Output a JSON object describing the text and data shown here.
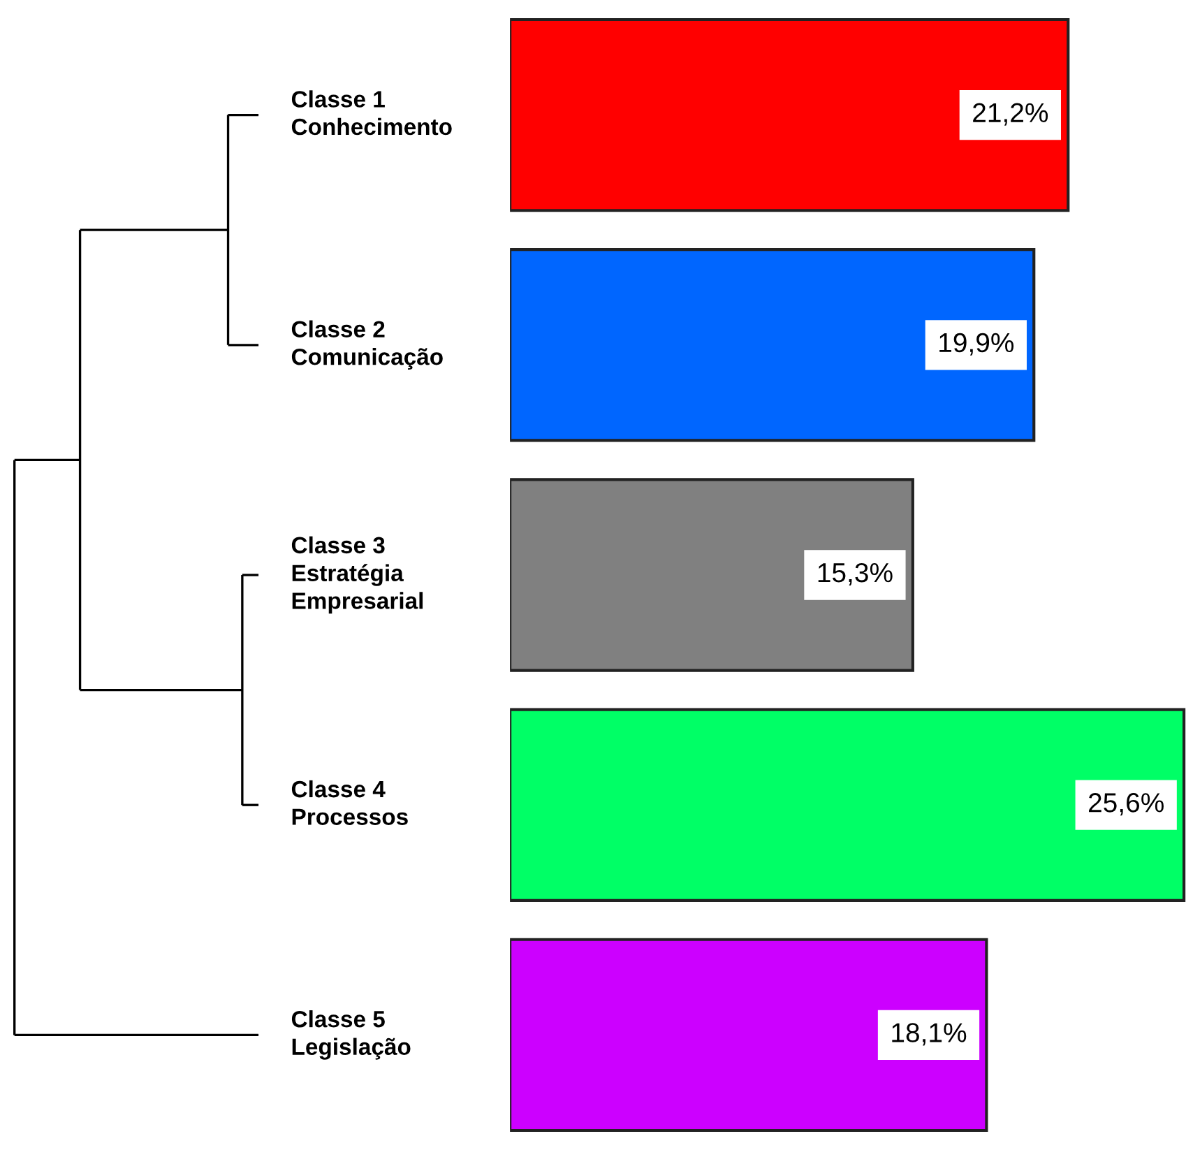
{
  "chart_data": {
    "type": "bar",
    "orientation": "horizontal",
    "categories": [
      "Classe 1\nConhecimento",
      "Classe 2\nComunicação",
      "Classe 3\nEstratégia\nEmpresarial",
      "Classe 4\nProcessos",
      "Classe 5\nLegislação"
    ],
    "values": [
      21.2,
      19.9,
      15.3,
      25.6,
      18.1
    ],
    "colors": [
      "#ff0000",
      "#0066ff",
      "#808080",
      "#00ff66",
      "#cc00ff"
    ],
    "value_labels": [
      "21,2%",
      "19,9%",
      "15,3%",
      "25,6%",
      "18,1%"
    ]
  }
}
